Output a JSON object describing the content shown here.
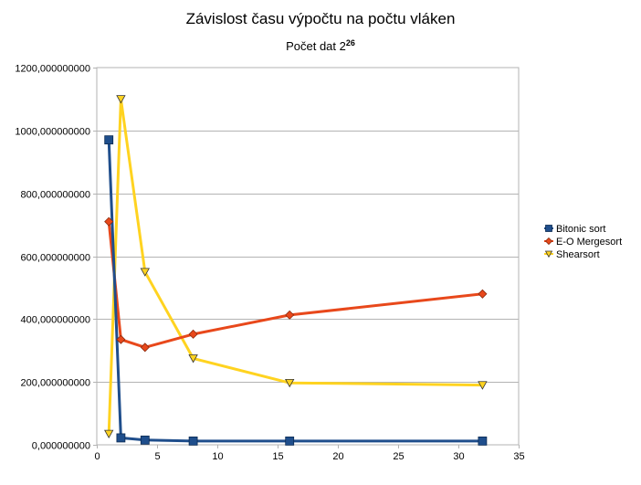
{
  "chart_data": {
    "type": "line",
    "title": "Závislost času výpočtu na počtu vláken",
    "subtitle_main": "Počet dat 2",
    "subtitle_sup": "26",
    "xlabel": "",
    "ylabel": "",
    "xlim": [
      0,
      35
    ],
    "ylim": [
      0,
      1200
    ],
    "x_ticks": [
      0,
      5,
      10,
      15,
      20,
      25,
      30,
      35
    ],
    "y_ticks": [
      0,
      200,
      400,
      600,
      800,
      1000,
      1200
    ],
    "x_tick_labels": [
      "0",
      "5",
      "10",
      "15",
      "20",
      "25",
      "30",
      "35"
    ],
    "y_tick_labels": [
      "0,000000000",
      "200,000000000",
      "400,000000000",
      "600,000000000",
      "800,000000000",
      "1000,000000000",
      "1200,000000000"
    ],
    "grid": "horizontal",
    "legend": "right",
    "series": [
      {
        "name": "Bitonic sort",
        "color": "#1f4e8c",
        "marker": "square",
        "x": [
          1,
          2,
          4,
          8,
          16,
          32
        ],
        "y": [
          970,
          22,
          15,
          12,
          12,
          12
        ]
      },
      {
        "name": "E-O Mergesort",
        "color": "#e8481b",
        "marker": "diamond",
        "x": [
          1,
          2,
          4,
          8,
          16,
          32
        ],
        "y": [
          710,
          335,
          310,
          352,
          413,
          480
        ]
      },
      {
        "name": "Shearsort",
        "color": "#ffd320",
        "marker": "triangle-down",
        "x": [
          1,
          2,
          4,
          8,
          16,
          32
        ],
        "y": [
          35,
          1100,
          550,
          275,
          197,
          190
        ]
      }
    ]
  }
}
